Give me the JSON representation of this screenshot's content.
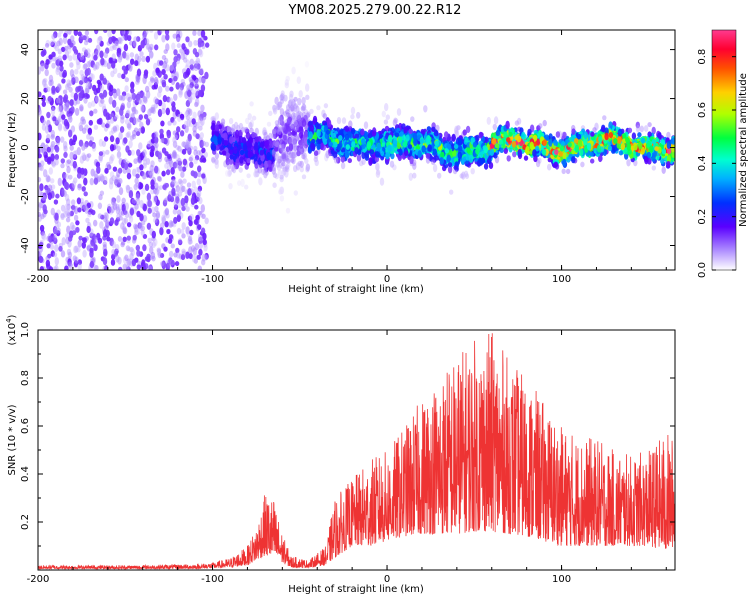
{
  "title": "YM08.2025.279.00.22.R12",
  "chart_data": [
    {
      "type": "heatmap",
      "xlabel": "Height of straight line (km)",
      "ylabel": "Frequency (Hz)",
      "xlim": [
        -200,
        165
      ],
      "ylim": [
        -50,
        48
      ],
      "xticks": [
        -200,
        -100,
        0,
        100
      ],
      "yticks": [
        -40,
        -20,
        0,
        20,
        40
      ],
      "colorbar": {
        "label": "Normalized spectral amplitude",
        "range": [
          0,
          0.9
        ],
        "ticks": [
          0.0,
          0.2,
          0.4,
          0.6,
          0.8
        ],
        "colormap": [
          "#ffffff",
          "#7a00e6",
          "#3a00ff",
          "#0060ff",
          "#00d8ff",
          "#00ff60",
          "#c8ff00",
          "#ffd000",
          "#ff6000",
          "#ff0000",
          "#ff2a8a"
        ]
      },
      "regions": [
        {
          "x": [
            -200,
            -103
          ],
          "note": "broadband noise, low amplitude",
          "amplitude": 0.1
        },
        {
          "x": [
            -100,
            -65
          ],
          "f_center": 0,
          "f_spread": 10,
          "amplitude": 0.2
        },
        {
          "x": [
            -65,
            -45
          ],
          "f_center": 5,
          "f_spread": 25,
          "amplitude": 0.1
        },
        {
          "x": [
            -45,
            0
          ],
          "f_center": 3,
          "f_spread": 8,
          "amplitude": 0.35
        },
        {
          "x": [
            0,
            60
          ],
          "f_center": 0,
          "f_spread": 8,
          "amplitude": 0.4
        },
        {
          "x": [
            60,
            165
          ],
          "f_center": 1,
          "f_spread": 6,
          "amplitude": 0.6
        }
      ]
    },
    {
      "type": "line",
      "color": "#ee3333",
      "xlabel": "Height of straight line (km)",
      "ylabel": "SNR (10 * v/v)",
      "yscale_label": "(x10",
      "yscale_exp": "4",
      "yscale_close": ")",
      "xlim": [
        -200,
        165
      ],
      "ylim": [
        0,
        1.0
      ],
      "xticks": [
        -200,
        -100,
        0,
        100
      ],
      "yticks": [
        0.2,
        0.4,
        0.6,
        0.8,
        1.0
      ],
      "envelope": {
        "x": [
          -200,
          -150,
          -110,
          -100,
          -90,
          -80,
          -75,
          -70,
          -65,
          -60,
          -55,
          -45,
          -35,
          -30,
          -20,
          -10,
          0,
          10,
          20,
          30,
          40,
          50,
          60,
          70,
          80,
          90,
          100,
          110,
          120,
          130,
          140,
          150,
          160,
          165
        ],
        "max": [
          0.02,
          0.02,
          0.025,
          0.03,
          0.05,
          0.1,
          0.18,
          0.32,
          0.3,
          0.15,
          0.06,
          0.04,
          0.1,
          0.3,
          0.38,
          0.46,
          0.5,
          0.6,
          0.72,
          0.82,
          0.9,
          0.97,
          1.0,
          0.88,
          0.8,
          0.7,
          0.6,
          0.56,
          0.55,
          0.5,
          0.48,
          0.5,
          0.58,
          0.55
        ],
        "min": [
          0.005,
          0.005,
          0.005,
          0.008,
          0.01,
          0.02,
          0.04,
          0.06,
          0.05,
          0.03,
          0.01,
          0.01,
          0.02,
          0.05,
          0.1,
          0.1,
          0.12,
          0.14,
          0.15,
          0.15,
          0.15,
          0.16,
          0.16,
          0.15,
          0.14,
          0.12,
          0.1,
          0.1,
          0.1,
          0.1,
          0.1,
          0.1,
          0.08,
          0.1
        ]
      }
    }
  ]
}
